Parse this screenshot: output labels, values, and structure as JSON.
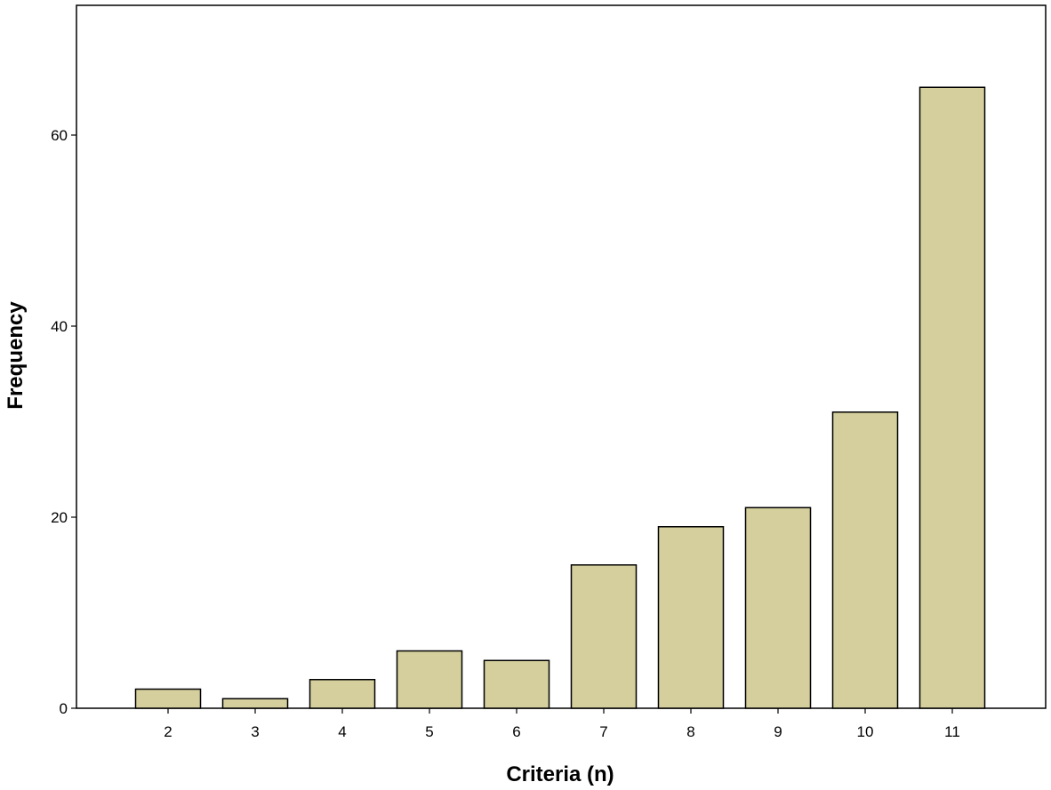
{
  "chart_data": {
    "type": "bar",
    "title": "",
    "xlabel": "Criteria (n)",
    "ylabel": "Frequency",
    "categories": [
      "2",
      "3",
      "4",
      "5",
      "6",
      "7",
      "8",
      "9",
      "10",
      "11"
    ],
    "values": [
      2,
      1,
      3,
      6,
      5,
      15,
      19,
      21,
      31,
      65
    ],
    "ylim": [
      0,
      74
    ],
    "yticks": [
      "0",
      "20",
      "40",
      "60"
    ],
    "grid": false,
    "legend": "none",
    "colors": {
      "bar_fill": "#d4cf9c",
      "bar_stroke": "#000000",
      "frame": "#000000",
      "background": "#ffffff"
    }
  }
}
